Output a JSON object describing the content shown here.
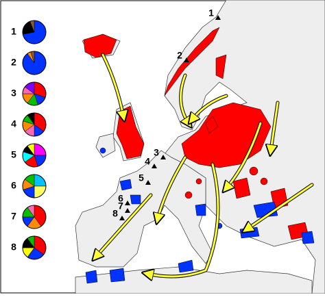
{
  "legend": [
    {
      "label": "1",
      "slices": [
        {
          "color": "#0033ff",
          "value": 72
        },
        {
          "color": "#000000",
          "value": 22
        },
        {
          "color": "#8b5a2b",
          "value": 6
        }
      ]
    },
    {
      "label": "2",
      "slices": [
        {
          "color": "#0033ff",
          "value": 90
        },
        {
          "color": "#ff8c00",
          "value": 5
        },
        {
          "color": "#8b5a2b",
          "value": 5
        }
      ]
    },
    {
      "label": "3",
      "slices": [
        {
          "color": "#ff0000",
          "value": 30
        },
        {
          "color": "#0033ff",
          "value": 15
        },
        {
          "color": "#00c000",
          "value": 15
        },
        {
          "color": "#ff8c00",
          "value": 15
        },
        {
          "color": "#ff69b4",
          "value": 10
        },
        {
          "color": "#8000ff",
          "value": 15
        }
      ]
    },
    {
      "label": "4",
      "slices": [
        {
          "color": "#ff0000",
          "value": 35
        },
        {
          "color": "#0033ff",
          "value": 15
        },
        {
          "color": "#ff69b4",
          "value": 15
        },
        {
          "color": "#ff8c00",
          "value": 15
        },
        {
          "color": "#00c000",
          "value": 10
        },
        {
          "color": "#000000",
          "value": 10
        }
      ]
    },
    {
      "label": "5",
      "slices": [
        {
          "color": "#ff00ff",
          "value": 25
        },
        {
          "color": "#0033ff",
          "value": 20
        },
        {
          "color": "#ff0000",
          "value": 20
        },
        {
          "color": "#00ffff",
          "value": 15
        },
        {
          "color": "#000000",
          "value": 10
        },
        {
          "color": "#ffff00",
          "value": 10
        }
      ]
    },
    {
      "label": "6",
      "slices": [
        {
          "color": "#00c0ff",
          "value": 25
        },
        {
          "color": "#ffff66",
          "value": 25
        },
        {
          "color": "#0033ff",
          "value": 20
        },
        {
          "color": "#ff8c00",
          "value": 15
        },
        {
          "color": "#00c000",
          "value": 15
        }
      ]
    },
    {
      "label": "7",
      "slices": [
        {
          "color": "#ff0000",
          "value": 40
        },
        {
          "color": "#ff8c00",
          "value": 20
        },
        {
          "color": "#0033ff",
          "value": 15
        },
        {
          "color": "#00c000",
          "value": 15
        },
        {
          "color": "#ff69b4",
          "value": 10
        }
      ]
    },
    {
      "label": "8",
      "slices": [
        {
          "color": "#ff0000",
          "value": 35
        },
        {
          "color": "#0033ff",
          "value": 25
        },
        {
          "color": "#ffff00",
          "value": 15
        },
        {
          "color": "#000000",
          "value": 15
        },
        {
          "color": "#00c000",
          "value": 10
        }
      ]
    }
  ],
  "sites": [
    {
      "label": "1"
    },
    {
      "label": "2"
    },
    {
      "label": "3"
    },
    {
      "label": "4"
    },
    {
      "label": "5"
    },
    {
      "label": "6"
    },
    {
      "label": "7"
    },
    {
      "label": "8"
    }
  ]
}
